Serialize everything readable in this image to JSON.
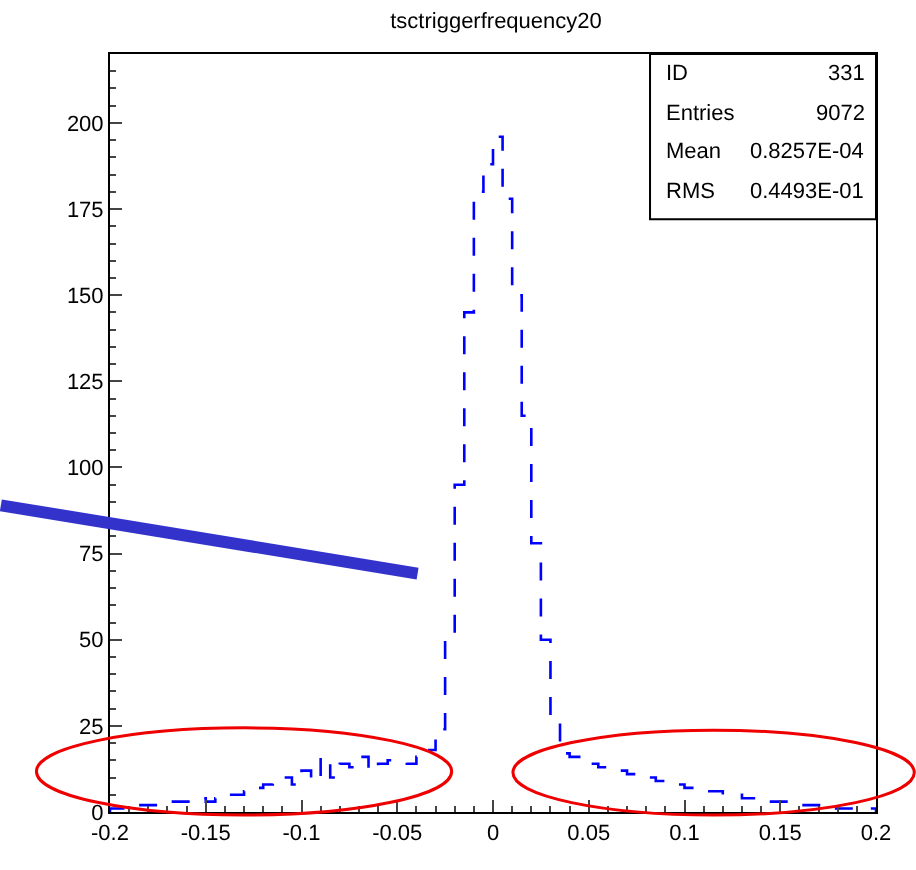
{
  "chart_data": {
    "type": "histogram",
    "title": "tsctriggerfrequency20",
    "bins": [
      -0.2,
      -0.195,
      -0.19,
      -0.185,
      -0.18,
      -0.175,
      -0.17,
      -0.165,
      -0.16,
      -0.155,
      -0.15,
      -0.145,
      -0.14,
      -0.135,
      -0.13,
      -0.125,
      -0.12,
      -0.115,
      -0.11,
      -0.105,
      -0.1,
      -0.095,
      -0.09,
      -0.085,
      -0.08,
      -0.075,
      -0.07,
      -0.065,
      -0.06,
      -0.055,
      -0.05,
      -0.045,
      -0.04,
      -0.035,
      -0.03,
      -0.025,
      -0.02,
      -0.015,
      -0.01,
      -0.005,
      0,
      0.005,
      0.01,
      0.015,
      0.02,
      0.025,
      0.03,
      0.035,
      0.04,
      0.045,
      0.05,
      0.055,
      0.06,
      0.065,
      0.07,
      0.075,
      0.08,
      0.085,
      0.09,
      0.095,
      0.1,
      0.105,
      0.11,
      0.115,
      0.12,
      0.125,
      0.13,
      0.135,
      0.14,
      0.145,
      0.15,
      0.155,
      0.16,
      0.165,
      0.17,
      0.175,
      0.18,
      0.185,
      0.19,
      0.195,
      0.2
    ],
    "values": [
      1,
      1,
      2,
      2,
      2,
      3,
      3,
      3,
      3,
      4,
      3,
      4,
      5,
      5,
      6,
      7,
      8,
      9,
      10,
      8,
      12,
      9,
      16,
      10,
      14,
      13,
      16,
      12,
      14,
      15,
      15,
      14,
      16,
      18,
      24,
      50,
      95,
      145,
      180,
      188,
      196,
      178,
      150,
      115,
      78,
      50,
      28,
      17,
      16,
      15,
      14,
      13,
      13,
      12,
      11,
      11,
      10,
      9,
      8,
      8,
      7,
      7,
      6,
      6,
      5,
      5,
      4,
      4,
      3,
      3,
      3,
      2,
      2,
      2,
      2,
      1,
      1,
      1,
      1,
      1
    ],
    "color": "#0000ff",
    "line_style": "dashed",
    "xlim": [
      -0.2,
      0.2
    ],
    "xticks": [
      -0.2,
      -0.15,
      -0.1,
      -0.05,
      0,
      0.05,
      0.1,
      0.15,
      0.2
    ],
    "ylim": [
      0,
      220
    ],
    "yticks": [
      0,
      25,
      50,
      75,
      100,
      125,
      150,
      175,
      200
    ],
    "annotations": [
      "ID",
      "331",
      "Entries",
      "9072",
      "Mean",
      "0.8257E-04",
      "RMS",
      "0.4493E-01"
    ]
  }
}
